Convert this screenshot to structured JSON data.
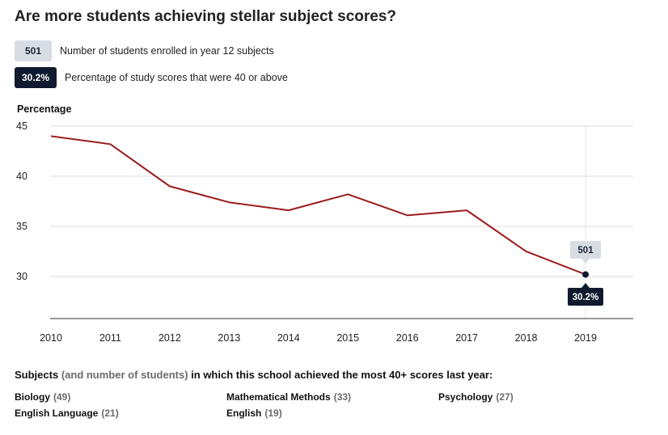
{
  "title": "Are more students achieving stellar subject scores?",
  "legend": {
    "enrolled": {
      "badge": "501",
      "text": "Number of students enrolled in year 12 subjects",
      "color": "#d8dde3"
    },
    "percentage": {
      "badge": "30.2%",
      "text": "Percentage of study scores that were 40 or above",
      "color": "#0f1a2e"
    }
  },
  "chart_data": {
    "type": "line",
    "ylabel": "Percentage",
    "xlabel": "",
    "x": [
      "2010",
      "2011",
      "2012",
      "2013",
      "2014",
      "2015",
      "2016",
      "2017",
      "2018",
      "2019"
    ],
    "series": [
      {
        "values": [
          44.0,
          43.2,
          39.0,
          37.4,
          36.6,
          38.2,
          36.1,
          36.6,
          32.5,
          30.2
        ],
        "color": "#9b1c1c"
      }
    ],
    "ylim": [
      25.8,
      45
    ],
    "yticks": [
      30,
      35,
      40,
      45
    ],
    "grid": true,
    "highlight": {
      "x": "2019",
      "top_label": "501",
      "bottom_label": "30.2%"
    }
  },
  "subjects": {
    "heading_part1": "Subjects",
    "heading_part2": "(and number of students)",
    "heading_part3": "in which this school achieved the most 40+ scores last year:",
    "items": [
      {
        "name": "Biology",
        "count": "(49)"
      },
      {
        "name": "Mathematical Methods",
        "count": "(33)"
      },
      {
        "name": "Psychology",
        "count": "(27)"
      },
      {
        "name": "English Language",
        "count": "(21)"
      },
      {
        "name": "English",
        "count": "(19)"
      }
    ]
  }
}
